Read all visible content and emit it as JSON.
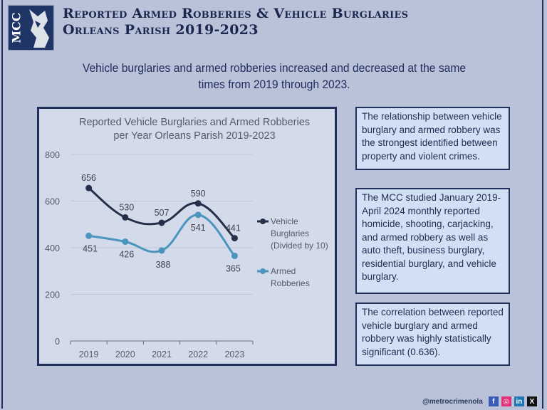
{
  "header": {
    "logo_text": "MCC",
    "title_line1": "Reported Armed Robberies & Vehicle Burglaries",
    "title_line2": "Orleans Parish 2019-2023"
  },
  "subtitle": {
    "line1": "Vehicle burglaries and armed robberies increased and decreased at the same",
    "line2": "times from 2019 through 2023."
  },
  "chart_data": {
    "type": "line",
    "title_line1": "Reported Vehicle Burglaries and Armed Robberies",
    "title_line2": "per Year Orleans Parish 2019-2023",
    "categories": [
      "2019",
      "2020",
      "2021",
      "2022",
      "2023"
    ],
    "ylim": [
      0,
      800
    ],
    "yticks": [
      "0",
      "200",
      "400",
      "600",
      "800"
    ],
    "grid": true,
    "legend_position": "right",
    "series": [
      {
        "name": "Vehicle Burglaries (Divided by 10)",
        "legend_lines": [
          "Vehicle",
          "Burglaries",
          "(Divided by 10)"
        ],
        "values": [
          656,
          530,
          507,
          590,
          441
        ],
        "color": "#243049"
      },
      {
        "name": "Armed Robberies",
        "legend_lines": [
          "Armed",
          "Robberies"
        ],
        "values": [
          451,
          426,
          388,
          541,
          365
        ],
        "color": "#4a94bd"
      }
    ]
  },
  "side_boxes": [
    "The relationship between vehicle burglary and armed robbery was the strongest identified between property and violent crimes.",
    "The MCC studied January 2019-April 2024 monthly reported homicide, shooting, carjacking, and armed robbery as well as auto theft, business burglary, residential burglary, and vehicle burglary.",
    "The correlation between reported vehicle burglary and armed robbery was highly statistically significant (0.636)."
  ],
  "footer": {
    "handle": "@metrocrimenola",
    "social": [
      {
        "icon": "facebook-icon",
        "glyph": "f",
        "color": "#3b5cb5"
      },
      {
        "icon": "instagram-icon",
        "glyph": "◎",
        "color": "#e0307a"
      },
      {
        "icon": "linkedin-icon",
        "glyph": "in",
        "color": "#1f78b4"
      },
      {
        "icon": "x-icon",
        "glyph": "X",
        "color": "#111111"
      }
    ]
  }
}
